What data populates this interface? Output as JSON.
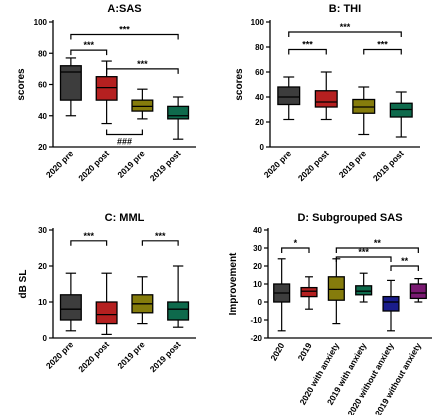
{
  "chart_data": [
    {
      "type": "boxplot",
      "title": "A:SAS",
      "ylabel": "scores",
      "ylim": [
        20,
        100
      ],
      "yticks": [
        20,
        40,
        60,
        80,
        100
      ],
      "categories": [
        "2020 pre",
        "2020 post",
        "2019 pre",
        "2019 post"
      ],
      "colors": [
        "#3d3d3d",
        "#b52020",
        "#857c0c",
        "#0e6a4c"
      ],
      "boxes": [
        {
          "min": 40,
          "q1": 50,
          "median": 68,
          "q3": 72,
          "max": 77
        },
        {
          "min": 35,
          "q1": 50,
          "median": 58,
          "q3": 65,
          "max": 75
        },
        {
          "min": 38,
          "q1": 43,
          "median": 46,
          "q3": 50,
          "max": 57
        },
        {
          "min": 25,
          "q1": 38,
          "median": 40,
          "q3": 46,
          "max": 52
        }
      ],
      "significance": [
        {
          "from": 0,
          "to": 3,
          "label": "***",
          "y": 92,
          "side": "top"
        },
        {
          "from": 0,
          "to": 1,
          "label": "***",
          "y": 82,
          "side": "top"
        },
        {
          "from": 1,
          "to": 3,
          "label": "***",
          "y": 70,
          "side": "top"
        },
        {
          "from": 1,
          "to": 2,
          "label": "###",
          "y": 28,
          "side": "bottom"
        }
      ]
    },
    {
      "type": "boxplot",
      "title": "B: THI",
      "ylabel": "scores",
      "ylim": [
        0,
        100
      ],
      "yticks": [
        0,
        20,
        40,
        60,
        80,
        100
      ],
      "categories": [
        "2020 pre",
        "2020 post",
        "2019 pre",
        "2019 post"
      ],
      "colors": [
        "#3d3d3d",
        "#b52020",
        "#857c0c",
        "#0e6a4c"
      ],
      "boxes": [
        {
          "min": 22,
          "q1": 34,
          "median": 40,
          "q3": 48,
          "max": 56
        },
        {
          "min": 22,
          "q1": 32,
          "median": 36,
          "q3": 45,
          "max": 60
        },
        {
          "min": 10,
          "q1": 27,
          "median": 32,
          "q3": 38,
          "max": 48
        },
        {
          "min": 8,
          "q1": 24,
          "median": 30,
          "q3": 35,
          "max": 44
        }
      ],
      "significance": [
        {
          "from": 0,
          "to": 3,
          "label": "***",
          "y": 92,
          "side": "top"
        },
        {
          "from": 0,
          "to": 1,
          "label": "***",
          "y": 78,
          "side": "top"
        },
        {
          "from": 2,
          "to": 3,
          "label": "***",
          "y": 78,
          "side": "top"
        }
      ]
    },
    {
      "type": "boxplot",
      "title": "C: MML",
      "ylabel": "dB SL",
      "ylim": [
        0,
        30
      ],
      "yticks": [
        0,
        10,
        20,
        30
      ],
      "categories": [
        "2020 pre",
        "2020 post",
        "2019 pre",
        "2019 post"
      ],
      "colors": [
        "#3d3d3d",
        "#b52020",
        "#857c0c",
        "#0e6a4c"
      ],
      "boxes": [
        {
          "min": 2,
          "q1": 5,
          "median": 8,
          "q3": 12,
          "max": 18
        },
        {
          "min": 1,
          "q1": 4,
          "median": 6.5,
          "q3": 10,
          "max": 18
        },
        {
          "min": 4,
          "q1": 7,
          "median": 9.5,
          "q3": 12,
          "max": 17
        },
        {
          "min": 3,
          "q1": 5,
          "median": 8,
          "q3": 10,
          "max": 20
        }
      ],
      "significance": [
        {
          "from": 0,
          "to": 1,
          "label": "***",
          "y": 27,
          "side": "top"
        },
        {
          "from": 2,
          "to": 3,
          "label": "***",
          "y": 27,
          "side": "top"
        }
      ]
    },
    {
      "type": "boxplot",
      "title": "D: Subgrouped SAS",
      "ylabel": "Improvement",
      "ylim": [
        -20,
        40
      ],
      "yticks": [
        -20,
        -10,
        0,
        10,
        20,
        30,
        40
      ],
      "categories": [
        "2020",
        "2019",
        "2020 with anxiety",
        "2019 with anxiety",
        "2020 without anxiety",
        "2019 without anxiety"
      ],
      "colors": [
        "#3d3d3d",
        "#b52020",
        "#857c0c",
        "#0e6a4c",
        "#1a1d8c",
        "#7a1a72"
      ],
      "boxes": [
        {
          "min": -16,
          "q1": 0,
          "median": 5,
          "q3": 10,
          "max": 24
        },
        {
          "min": -4,
          "q1": 3,
          "median": 6,
          "q3": 8,
          "max": 14
        },
        {
          "min": -12,
          "q1": 1,
          "median": 7,
          "q3": 14,
          "max": 24
        },
        {
          "min": 0,
          "q1": 4,
          "median": 6,
          "q3": 9,
          "max": 16
        },
        {
          "min": -16,
          "q1": -5,
          "median": 0,
          "q3": 3,
          "max": 12
        },
        {
          "min": 0,
          "q1": 2,
          "median": 5,
          "q3": 10,
          "max": 13
        }
      ],
      "significance": [
        {
          "from": 0,
          "to": 1,
          "label": "*",
          "y": 30,
          "side": "top"
        },
        {
          "from": 2,
          "to": 5,
          "label": "**",
          "y": 30,
          "side": "top"
        },
        {
          "from": 2,
          "to": 4,
          "label": "***",
          "y": 25,
          "side": "top"
        },
        {
          "from": 4,
          "to": 5,
          "label": "**",
          "y": 20,
          "side": "top"
        }
      ]
    }
  ]
}
